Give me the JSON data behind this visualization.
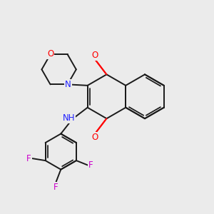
{
  "background_color": "#ebebeb",
  "bond_color": "#1a1a1a",
  "bond_width": 1.4,
  "atom_colors": {
    "O": "#ff0000",
    "N": "#2020ff",
    "NH": "#2020ff",
    "F": "#cc00cc",
    "C": "#1a1a1a"
  },
  "font_size_atom": 8.5,
  "font_size_NH": 8.5
}
